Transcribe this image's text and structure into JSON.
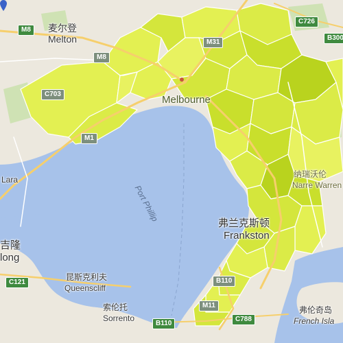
{
  "map": {
    "colors": {
      "land": "#ece8de",
      "water": "#a7c2ea",
      "choropleth_light": "#e3f052",
      "choropleth_mid": "#d4e63c",
      "choropleth_dark": "#b9d31e",
      "road_major": "#f6cf6c",
      "road_minor": "#ffffff",
      "park": "#cfe2b4"
    },
    "places": {
      "melton_cn": "麦尔登",
      "melton": "Melton",
      "melbourne": "Melbourne",
      "frankston_cn": "弗兰克斯顿",
      "frankston": "Frankston",
      "narre_warren_cn": "纳瑞沃伦",
      "narre_warren": "Narre Warren",
      "geelong_cn": "吉隆",
      "geelong_partial": "long",
      "lara": "Lara",
      "queenscliff_cn": "昆斯克利夫",
      "queenscliff": "Queenscliff",
      "sorrento_cn": "索伦托",
      "sorrento": "Sorrento",
      "french_island_cn": "弗伦奇岛",
      "french_island": "French Isla"
    },
    "water_label": "Port Phillip",
    "roads": {
      "m8": "M8",
      "m8b": "M8",
      "c726": "C726",
      "b300": "B300",
      "m31": "M31",
      "c703": "C703",
      "m1": "M1",
      "c121": "C121",
      "m11": "M11",
      "b110": "B110",
      "b110b": "B110",
      "c788": "C788"
    }
  }
}
